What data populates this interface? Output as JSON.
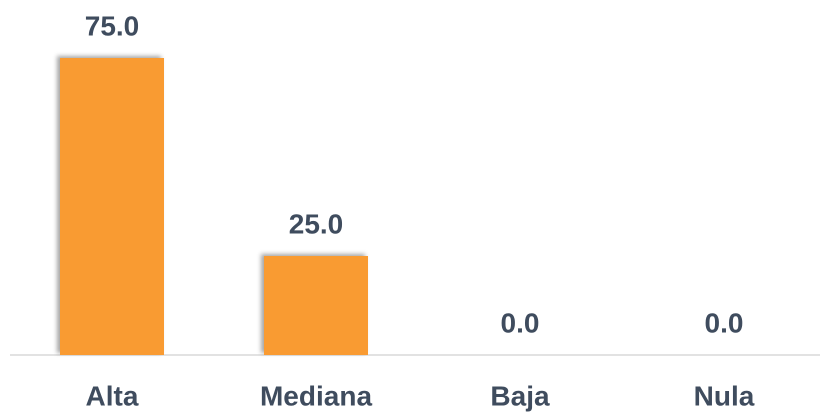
{
  "chart_data": {
    "type": "bar",
    "categories": [
      "Alta",
      "Mediana",
      "Baja",
      "Nula"
    ],
    "values": [
      75,
      25,
      0,
      0
    ],
    "value_labels": [
      "75.0",
      "25.0",
      "0.0",
      "0.0"
    ],
    "color": "#f99b33"
  }
}
